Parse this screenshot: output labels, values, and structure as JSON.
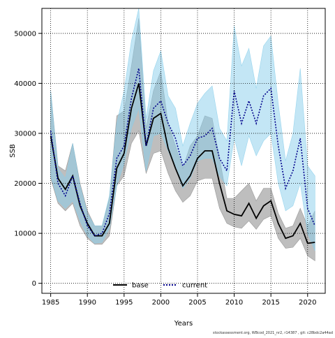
{
  "chart_data": {
    "type": "line",
    "title": "",
    "xlabel": "Years",
    "ylabel": "SSB",
    "xlim": [
      1983.8,
      2022.4
    ],
    "ylim": [
      -2000,
      55000
    ],
    "x_ticks": [
      1985,
      1990,
      1995,
      2000,
      2005,
      2010,
      2015,
      2020
    ],
    "y_ticks": [
      0,
      10000,
      20000,
      30000,
      40000,
      50000
    ],
    "grid": true,
    "legend_position": "bottom-center",
    "x": [
      1985,
      1986,
      1987,
      1988,
      1989,
      1990,
      1991,
      1992,
      1993,
      1994,
      1995,
      1996,
      1997,
      1998,
      1999,
      2000,
      2001,
      2002,
      2003,
      2004,
      2005,
      2006,
      2007,
      2008,
      2009,
      2010,
      2011,
      2012,
      2013,
      2014,
      2015,
      2016,
      2017,
      2018,
      2019,
      2020,
      2021
    ],
    "series": [
      {
        "name": "base",
        "color": "#000000",
        "band_color": "#888888",
        "line_style": "solid",
        "values": [
          29500,
          21000,
          18800,
          21500,
          15500,
          12000,
          9500,
          9500,
          12000,
          23000,
          26000,
          35000,
          40000,
          27500,
          33000,
          34000,
          27000,
          23000,
          19500,
          21500,
          25000,
          26500,
          26500,
          20000,
          14500,
          13800,
          13500,
          16000,
          13000,
          15500,
          16500,
          12000,
          9000,
          9500,
          12000,
          8000,
          8200
        ],
        "lower": [
          21000,
          16000,
          14500,
          16000,
          11500,
          9000,
          7800,
          7800,
          9500,
          19500,
          21500,
          28000,
          30500,
          22000,
          26000,
          26500,
          22000,
          18500,
          16200,
          17500,
          20500,
          21000,
          21000,
          15000,
          12000,
          11300,
          11000,
          12500,
          10800,
          12800,
          13500,
          9000,
          7000,
          7200,
          9000,
          5500,
          4500
        ],
        "upper": [
          38500,
          23500,
          22500,
          28000,
          20000,
          14500,
          11500,
          11500,
          17000,
          33500,
          34500,
          43500,
          53000,
          31000,
          38500,
          42500,
          32000,
          27500,
          23000,
          27500,
          29500,
          33500,
          33000,
          25000,
          17000,
          17000,
          18500,
          20000,
          16500,
          19000,
          19000,
          14000,
          11000,
          11500,
          15000,
          11500,
          14500
        ]
      },
      {
        "name": "current",
        "color": "#00008B",
        "band_color": "#87CEEB",
        "line_style": "dotted",
        "values": [
          30500,
          20000,
          17500,
          21500,
          16000,
          11500,
          9500,
          10000,
          14000,
          25000,
          27500,
          37000,
          43000,
          27500,
          35000,
          36500,
          32000,
          29000,
          23500,
          25500,
          29000,
          29500,
          31000,
          25000,
          22500,
          38500,
          32000,
          36500,
          32000,
          37500,
          39000,
          27500,
          19000,
          22500,
          29000,
          15000,
          11500
        ],
        "lower": [
          21500,
          16500,
          15000,
          16500,
          12500,
          9500,
          8000,
          8200,
          11000,
          19500,
          24000,
          31000,
          35000,
          22500,
          29500,
          30000,
          26500,
          23000,
          19000,
          21000,
          24500,
          25000,
          25000,
          21500,
          19500,
          29000,
          23500,
          29500,
          25500,
          28500,
          30000,
          20000,
          14500,
          15500,
          20000,
          10000,
          6500
        ],
        "upper": [
          38500,
          23000,
          21000,
          28000,
          19500,
          14000,
          11500,
          11500,
          17500,
          32000,
          38500,
          48500,
          56000,
          33000,
          42500,
          46500,
          37500,
          35000,
          27500,
          32000,
          36000,
          38000,
          39500,
          31000,
          28500,
          51500,
          43500,
          47000,
          39000,
          47500,
          49500,
          36000,
          24500,
          30000,
          43000,
          23500,
          21500
        ]
      }
    ]
  },
  "footnote": "stockassessment.org, WBcod_2021_nr2, r14387 , git: c28bdc2a44ad"
}
